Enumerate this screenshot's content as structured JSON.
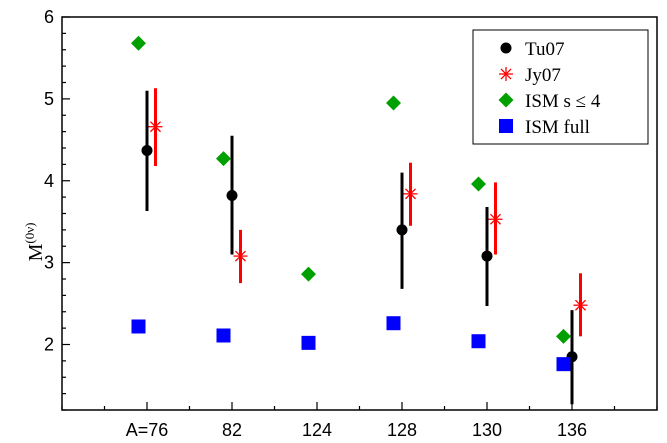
{
  "chart_data": {
    "type": "scatter",
    "ylabel_main": "M",
    "ylabel_sup": "(0ν)",
    "xlabel": "",
    "categories": [
      "A=76",
      "82",
      "124",
      "128",
      "130",
      "136"
    ],
    "ylim": [
      1.2,
      6
    ],
    "yticks": [
      2,
      3,
      4,
      5,
      6
    ],
    "grid": false,
    "legend_position": "top-right",
    "series": [
      {
        "name": "Tu07",
        "marker": "circle",
        "color": "#000000",
        "offset": 0,
        "points": [
          {
            "category": "A=76",
            "y": 4.37,
            "low": 3.63,
            "high": 5.1
          },
          {
            "category": "82",
            "y": 3.82,
            "low": 3.1,
            "high": 4.55
          },
          {
            "category": "128",
            "y": 3.4,
            "low": 2.68,
            "high": 4.1
          },
          {
            "category": "130",
            "y": 3.08,
            "low": 2.47,
            "high": 3.68
          },
          {
            "category": "136",
            "y": 1.85,
            "low": 1.27,
            "high": 2.42
          }
        ]
      },
      {
        "name": "Jy07",
        "marker": "asterisk",
        "color": "#ff0000",
        "offset": 0.1,
        "points": [
          {
            "category": "A=76",
            "y": 4.66,
            "low": 4.18,
            "high": 5.13
          },
          {
            "category": "82",
            "y": 3.08,
            "low": 2.75,
            "high": 3.4
          },
          {
            "category": "128",
            "y": 3.84,
            "low": 3.45,
            "high": 4.22
          },
          {
            "category": "130",
            "y": 3.53,
            "low": 3.1,
            "high": 3.98
          },
          {
            "category": "136",
            "y": 2.48,
            "low": 2.1,
            "high": 2.87
          }
        ]
      },
      {
        "name": "ISM s ≤ 4",
        "marker": "diamond",
        "color": "#00a000",
        "offset": -0.1,
        "points": [
          {
            "category": "A=76",
            "y": 5.68
          },
          {
            "category": "82",
            "y": 4.27
          },
          {
            "category": "124",
            "y": 2.86
          },
          {
            "category": "128",
            "y": 4.95
          },
          {
            "category": "130",
            "y": 3.96
          },
          {
            "category": "136",
            "y": 2.1
          }
        ]
      },
      {
        "name": "ISM full",
        "marker": "square",
        "color": "#0000ff",
        "offset": -0.1,
        "points": [
          {
            "category": "A=76",
            "y": 2.22
          },
          {
            "category": "82",
            "y": 2.11
          },
          {
            "category": "124",
            "y": 2.02
          },
          {
            "category": "128",
            "y": 2.26
          },
          {
            "category": "130",
            "y": 2.04
          },
          {
            "category": "136",
            "y": 1.76
          }
        ]
      }
    ]
  }
}
